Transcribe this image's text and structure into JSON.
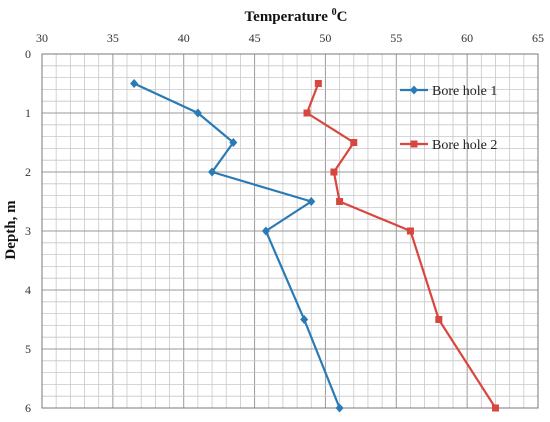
{
  "chart_data": {
    "type": "line",
    "title": "",
    "xlabel_main": "Temperature ",
    "xlabel_sup": "0",
    "xlabel_unit": "C",
    "ylabel": "Depth, m",
    "x_axis_position": "top",
    "y_axis_inverted": true,
    "xlim": [
      30,
      65
    ],
    "ylim": [
      0,
      6
    ],
    "x_ticks": [
      30,
      35,
      40,
      45,
      50,
      55,
      60,
      65
    ],
    "y_ticks": [
      0,
      1,
      2,
      3,
      4,
      5,
      6
    ],
    "x_minor_step": 1,
    "y_minor_step": 0.2,
    "grid": true,
    "legend_position": "right",
    "series": [
      {
        "name": "Bore hole 1",
        "color": "#2a7ab5",
        "marker": "diamond",
        "points": [
          {
            "x": 36.5,
            "y": 0.5
          },
          {
            "x": 41.0,
            "y": 1.0
          },
          {
            "x": 43.5,
            "y": 1.5
          },
          {
            "x": 42.0,
            "y": 2.0
          },
          {
            "x": 49.0,
            "y": 2.5
          },
          {
            "x": 45.8,
            "y": 3.0
          },
          {
            "x": 48.5,
            "y": 4.5
          },
          {
            "x": 51.0,
            "y": 6.0
          }
        ]
      },
      {
        "name": "Bore hole 2",
        "color": "#d9463f",
        "marker": "square",
        "points": [
          {
            "x": 49.5,
            "y": 0.5
          },
          {
            "x": 48.7,
            "y": 1.0
          },
          {
            "x": 52.0,
            "y": 1.5
          },
          {
            "x": 50.6,
            "y": 2.0
          },
          {
            "x": 51.0,
            "y": 2.5
          },
          {
            "x": 56.0,
            "y": 3.0
          },
          {
            "x": 58.0,
            "y": 4.5
          },
          {
            "x": 62.0,
            "y": 6.0
          }
        ]
      }
    ]
  }
}
